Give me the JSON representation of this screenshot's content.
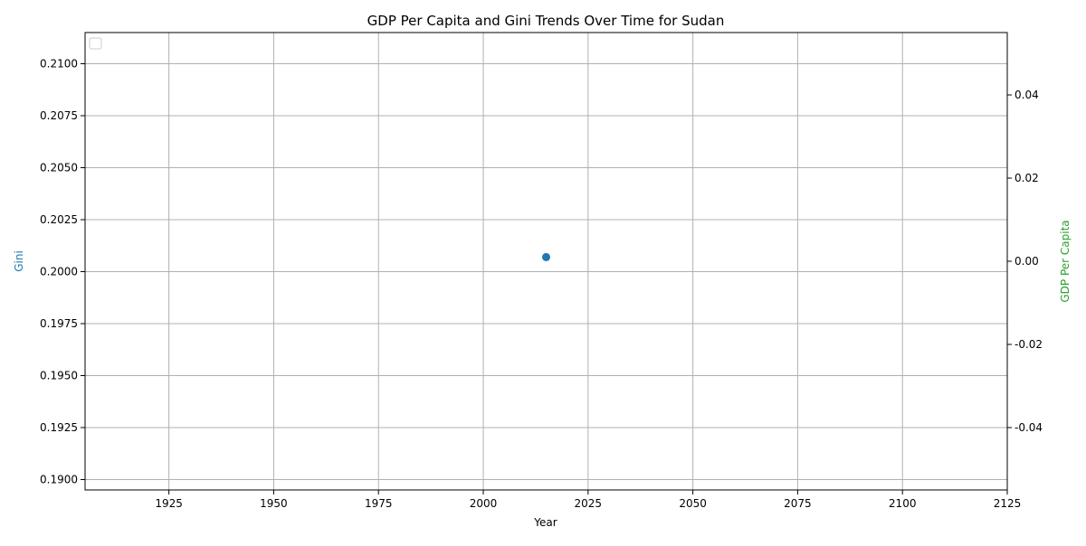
{
  "chart_data": {
    "type": "scatter",
    "title": "GDP Per Capita and Gini Trends Over Time for Sudan",
    "xlabel": "Year",
    "ylabel_left": "Gini",
    "ylabel_right": "GDP Per Capita",
    "xlim": [
      1905,
      2125
    ],
    "x_ticks": [
      1925,
      1950,
      1975,
      2000,
      2025,
      2050,
      2075,
      2100,
      2125
    ],
    "ylim_left": [
      0.1895,
      0.2115
    ],
    "y_ticks_left": [
      "0.1900",
      "0.1925",
      "0.1950",
      "0.1975",
      "0.2000",
      "0.2025",
      "0.2050",
      "0.2075",
      "0.2100"
    ],
    "ylim_right": [
      -0.055,
      0.055
    ],
    "y_ticks_right": [
      "-0.04",
      "-0.02",
      "0.00",
      "0.02",
      "0.04"
    ],
    "grid": true,
    "legend_position": "top-left",
    "series": [
      {
        "axis": "left",
        "color": "#1f77b4",
        "points": [
          {
            "x": 2015,
            "y": 0.2007
          }
        ]
      }
    ],
    "colors": {
      "left_axis_label": "#1f77b4",
      "right_axis_label": "#2ca02c",
      "grid": "#b0b0b0"
    }
  }
}
